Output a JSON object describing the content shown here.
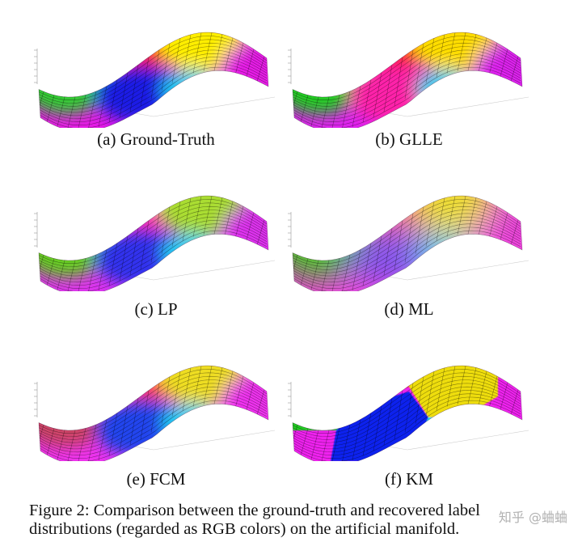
{
  "panels": [
    {
      "caption": "(a) Ground-Truth",
      "style": "soft",
      "colors": [
        "#33cc33",
        "#ff1a1a",
        "#1f1fe6",
        "#ffee00",
        "#e61ae6"
      ]
    },
    {
      "caption": "(b) GLLE",
      "style": "soft",
      "colors": [
        "#22cc22",
        "#ff2222",
        "#ff22aa",
        "#ffdd00",
        "#dd22ee"
      ]
    },
    {
      "caption": "(c) LP",
      "style": "soft",
      "colors": [
        "#66cc22",
        "#ff33aa",
        "#3333ee",
        "#aadd33",
        "#dd33ee"
      ]
    },
    {
      "caption": "(d) ML",
      "style": "blend",
      "colors": [
        "#44cc22",
        "#ff6688",
        "#8855ee",
        "#eedd33",
        "#ee44dd"
      ]
    },
    {
      "caption": "(e) FCM",
      "style": "soft",
      "colors": [
        "#cc4466",
        "#ff3355",
        "#2244ee",
        "#eedd22",
        "#ee33ee"
      ]
    },
    {
      "caption": "(f) KM",
      "style": "hard",
      "colors": [
        "#22cc22",
        "#ee1111",
        "#1122ee",
        "#eedd11",
        "#ee22ee"
      ]
    }
  ],
  "figure_caption": {
    "line1": "Figure 2: Comparison between the ground-truth and recovered label",
    "line2": "distributions (regarded as RGB colors) on the artificial manifold."
  },
  "watermark": "知乎 @蛐蛐"
}
